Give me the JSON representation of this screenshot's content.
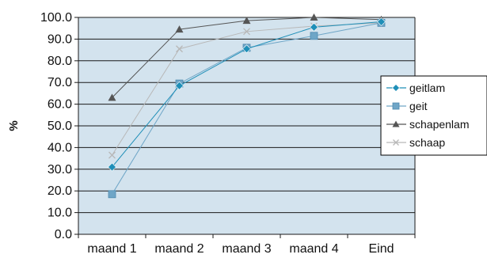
{
  "chart_data": {
    "type": "line",
    "title": "",
    "xlabel": "",
    "ylabel": "%",
    "ylim": [
      0,
      100
    ],
    "y_ticks": [
      "0.0",
      "10.0",
      "20.0",
      "30.0",
      "40.0",
      "50.0",
      "60.0",
      "70.0",
      "80.0",
      "90.0",
      "100.0"
    ],
    "categories": [
      "maand 1",
      "maand 2",
      "maand 3",
      "maand 4",
      "Eind"
    ],
    "grid": true,
    "legend_position": "right",
    "plot_background": "#d3e3ee",
    "series": [
      {
        "name": "geitlam",
        "values": [
          31.0,
          68.5,
          85.5,
          95.5,
          98.0
        ],
        "color": "#1f8fb8",
        "marker": "diamond"
      },
      {
        "name": "geit",
        "values": [
          18.5,
          69.5,
          86.0,
          91.5,
          97.5
        ],
        "color": "#6fa6c7",
        "marker": "square"
      },
      {
        "name": "schapenlam",
        "values": [
          63.0,
          94.5,
          98.5,
          100.0,
          99.0
        ],
        "color": "#555555",
        "marker": "triangle"
      },
      {
        "name": "schaap",
        "values": [
          36.5,
          85.5,
          93.5,
          96.0,
          97.5
        ],
        "color": "#b8b8b8",
        "marker": "x"
      }
    ]
  }
}
